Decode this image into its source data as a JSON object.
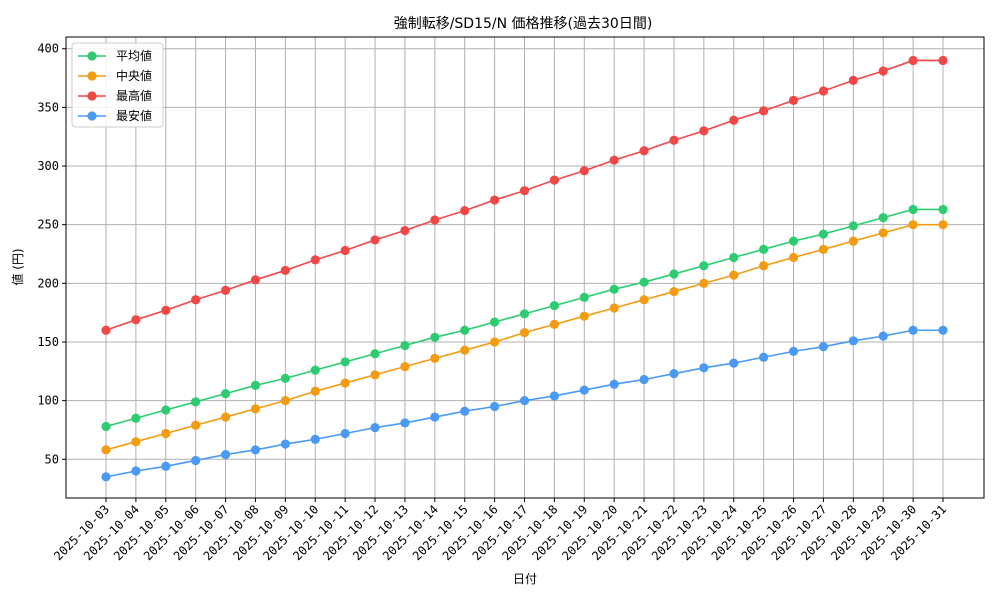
{
  "chart_data": {
    "type": "line",
    "title": "強制転移/SD15/N 価格推移(過去30日間)",
    "xlabel": "日付",
    "ylabel": "値 (円)",
    "ylim": [
      17,
      410
    ],
    "yticks": [
      50,
      100,
      150,
      200,
      250,
      300,
      350,
      400
    ],
    "grid": true,
    "legend_position": "top-left",
    "x": [
      "2025-10-03",
      "2025-10-04",
      "2025-10-05",
      "2025-10-06",
      "2025-10-07",
      "2025-10-08",
      "2025-10-09",
      "2025-10-10",
      "2025-10-11",
      "2025-10-12",
      "2025-10-13",
      "2025-10-14",
      "2025-10-15",
      "2025-10-16",
      "2025-10-17",
      "2025-10-18",
      "2025-10-19",
      "2025-10-20",
      "2025-10-21",
      "2025-10-22",
      "2025-10-23",
      "2025-10-24",
      "2025-10-25",
      "2025-10-26",
      "2025-10-27",
      "2025-10-28",
      "2025-10-29",
      "2025-10-30",
      "2025-10-31"
    ],
    "series": [
      {
        "name": "平均値",
        "color": "#2ecc71",
        "values": [
          78,
          85,
          92,
          99,
          106,
          113,
          119,
          126,
          133,
          140,
          147,
          154,
          160,
          167,
          174,
          181,
          188,
          195,
          201,
          208,
          215,
          222,
          229,
          236,
          242,
          249,
          256,
          263,
          263
        ]
      },
      {
        "name": "中央値",
        "color": "#f39c12",
        "values": [
          58,
          65,
          72,
          79,
          86,
          93,
          100,
          108,
          115,
          122,
          129,
          136,
          143,
          150,
          158,
          165,
          172,
          179,
          186,
          193,
          200,
          207,
          215,
          222,
          229,
          236,
          243,
          250,
          250
        ]
      },
      {
        "name": "最高値",
        "color": "#f04747",
        "values": [
          160,
          169,
          177,
          186,
          194,
          203,
          211,
          220,
          228,
          237,
          245,
          254,
          262,
          271,
          279,
          288,
          296,
          305,
          313,
          322,
          330,
          339,
          347,
          356,
          364,
          373,
          381,
          390,
          390
        ]
      },
      {
        "name": "最安値",
        "color": "#4a9af5",
        "values": [
          35,
          40,
          44,
          49,
          54,
          58,
          63,
          67,
          72,
          77,
          81,
          86,
          91,
          95,
          100,
          104,
          109,
          114,
          118,
          123,
          128,
          132,
          137,
          142,
          146,
          151,
          155,
          160,
          160
        ]
      }
    ]
  }
}
